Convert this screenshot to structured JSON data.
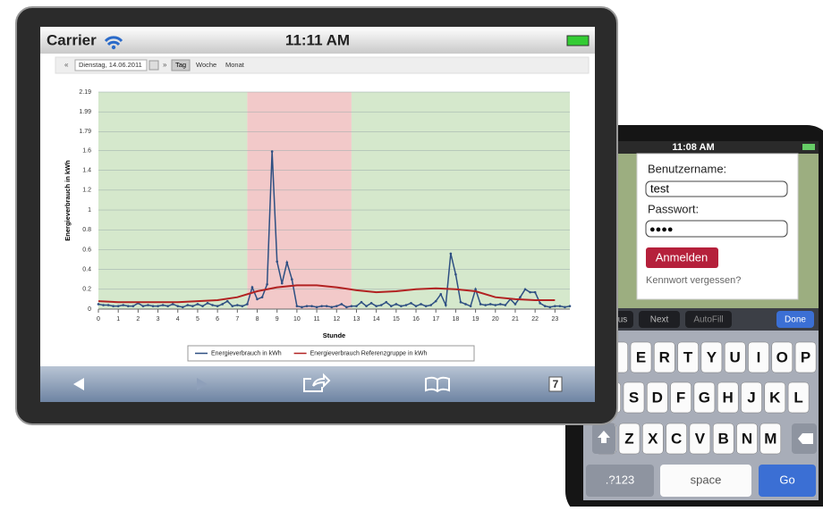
{
  "tablet": {
    "carrier": "Carrier",
    "time": "11:11 AM",
    "date_nav": {
      "prev": "«",
      "date": "Dienstag, 14.06.2011",
      "next": "»",
      "tabs": [
        "Tag",
        "Woche",
        "Monat"
      ]
    },
    "tabs_count": "7"
  },
  "chart_data": {
    "type": "line",
    "xlabel": "Stunde",
    "ylabel": "Energieverbrauch in kWh",
    "xlim": [
      0,
      23.75
    ],
    "ylim": [
      0,
      2.19
    ],
    "xticks": [
      0,
      1,
      2,
      3,
      4,
      5,
      6,
      7,
      8,
      9,
      10,
      11,
      12,
      13,
      14,
      15,
      16,
      17,
      18,
      19,
      20,
      21,
      22,
      23
    ],
    "yticks": [
      0,
      0.2,
      0.4,
      0.6,
      0.8,
      1,
      1.2,
      1.4,
      1.6,
      1.79,
      1.99,
      2.19
    ],
    "grid": true,
    "bands": [
      {
        "from": 0,
        "to": 7.5,
        "color": "#d5e8cc"
      },
      {
        "from": 7.5,
        "to": 12.75,
        "color": "#f2c9c9"
      },
      {
        "from": 12.75,
        "to": 23.75,
        "color": "#d5e8cc"
      }
    ],
    "x": [
      0,
      0.25,
      0.5,
      0.75,
      1,
      1.25,
      1.5,
      1.75,
      2,
      2.25,
      2.5,
      2.75,
      3,
      3.25,
      3.5,
      3.75,
      4,
      4.25,
      4.5,
      4.75,
      5,
      5.25,
      5.5,
      5.75,
      6,
      6.25,
      6.5,
      6.75,
      7,
      7.25,
      7.5,
      7.75,
      8,
      8.25,
      8.5,
      8.75,
      9,
      9.25,
      9.5,
      9.75,
      10,
      10.25,
      10.5,
      10.75,
      11,
      11.25,
      11.5,
      11.75,
      12,
      12.25,
      12.5,
      12.75,
      13,
      13.25,
      13.5,
      13.75,
      14,
      14.25,
      14.5,
      14.75,
      15,
      15.25,
      15.5,
      15.75,
      16,
      16.25,
      16.5,
      16.75,
      17,
      17.25,
      17.5,
      17.75,
      18,
      18.25,
      18.5,
      18.75,
      19,
      19.25,
      19.5,
      19.75,
      20,
      20.25,
      20.5,
      20.75,
      21,
      21.25,
      21.5,
      21.75,
      22,
      22.25,
      22.5,
      22.75,
      23,
      23.25,
      23.5,
      23.75
    ],
    "series": [
      {
        "name": "Energieverbrauch in kWh",
        "color": "#2e4f82",
        "values": [
          0.05,
          0.04,
          0.04,
          0.03,
          0.03,
          0.04,
          0.03,
          0.03,
          0.06,
          0.03,
          0.04,
          0.03,
          0.03,
          0.04,
          0.03,
          0.05,
          0.03,
          0.02,
          0.04,
          0.03,
          0.05,
          0.03,
          0.06,
          0.04,
          0.03,
          0.05,
          0.08,
          0.03,
          0.04,
          0.03,
          0.05,
          0.22,
          0.1,
          0.12,
          0.25,
          1.59,
          0.48,
          0.26,
          0.47,
          0.3,
          0.03,
          0.02,
          0.03,
          0.03,
          0.02,
          0.03,
          0.03,
          0.02,
          0.03,
          0.05,
          0.02,
          0.03,
          0.03,
          0.07,
          0.03,
          0.06,
          0.03,
          0.04,
          0.07,
          0.03,
          0.05,
          0.03,
          0.04,
          0.06,
          0.03,
          0.05,
          0.03,
          0.04,
          0.08,
          0.15,
          0.04,
          0.56,
          0.35,
          0.07,
          0.05,
          0.03,
          0.2,
          0.05,
          0.04,
          0.05,
          0.04,
          0.05,
          0.04,
          0.1,
          0.05,
          0.12,
          0.2,
          0.17,
          0.17,
          0.06,
          0.03,
          0.02,
          0.03,
          0.03,
          0.02,
          0.03
        ]
      },
      {
        "name": "Energieverbrauch Referenzgruppe in kWh",
        "color": "#b22222",
        "x": [
          0,
          1,
          2,
          3,
          4,
          5,
          6,
          7,
          8,
          9,
          10,
          11,
          12,
          13,
          14,
          15,
          16,
          17,
          18,
          19,
          20,
          21,
          22,
          23
        ],
        "values": [
          0.08,
          0.07,
          0.07,
          0.07,
          0.07,
          0.08,
          0.09,
          0.12,
          0.18,
          0.22,
          0.24,
          0.24,
          0.22,
          0.19,
          0.17,
          0.18,
          0.2,
          0.21,
          0.2,
          0.18,
          0.12,
          0.1,
          0.09,
          0.09
        ]
      }
    ]
  },
  "phone": {
    "time": "11:08 AM",
    "username_label": "Benutzername:",
    "username": "test",
    "password_label": "Passwort:",
    "password": "●●●●",
    "login": "Anmelden",
    "forgot": "Kennwort vergessen?",
    "form_bar": {
      "prev": "us",
      "next": "Next",
      "autofill": "AutoFill",
      "done": "Done"
    },
    "keyboard": {
      "rows": [
        [
          "E",
          "R",
          "T",
          "Y",
          "U",
          "I",
          "O",
          "P"
        ],
        [
          "S",
          "D",
          "F",
          "G",
          "H",
          "J",
          "K",
          "L"
        ],
        [
          "Z",
          "X",
          "C",
          "V",
          "B",
          "N",
          "M"
        ]
      ],
      "numbers": ".?123",
      "space": "space",
      "go": "Go"
    }
  }
}
